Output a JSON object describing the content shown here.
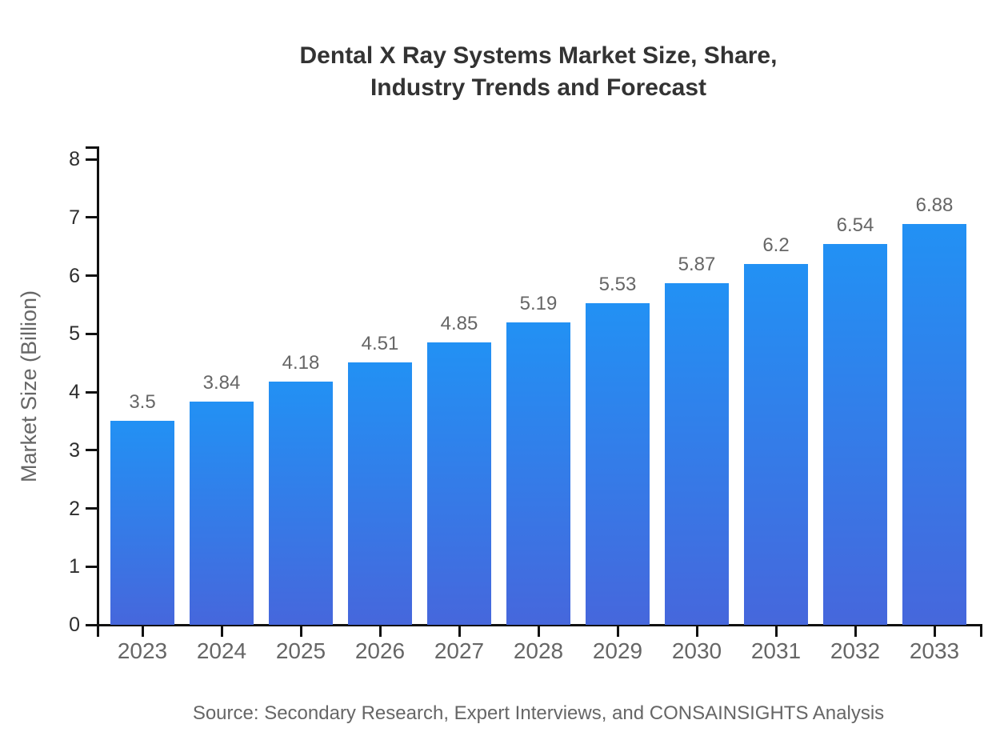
{
  "chart_data": {
    "type": "bar",
    "title_lines": [
      "Dental X Ray Systems Market Size, Share,",
      "Industry Trends and Forecast"
    ],
    "categories": [
      "2023",
      "2024",
      "2025",
      "2026",
      "2027",
      "2028",
      "2029",
      "2030",
      "2031",
      "2032",
      "2033"
    ],
    "values": [
      3.5,
      3.84,
      4.18,
      4.51,
      4.85,
      5.19,
      5.53,
      5.87,
      6.2,
      6.54,
      6.88
    ],
    "xlabel": "",
    "ylabel": "Market Size (Billion)",
    "ylim": [
      0,
      8
    ],
    "y_ticks": [
      0,
      1,
      2,
      3,
      4,
      5,
      6,
      7,
      8
    ],
    "grid": false,
    "legend": false,
    "source_note": "Source: Secondary Research, Expert Interviews, and CONSAINSIGHTS Analysis",
    "colors": {
      "bar_gradient_top": "#2291F4",
      "bar_gradient_bottom": "#4667DC",
      "axis_line": "#111111",
      "y_tick_label": "#2e2e2e",
      "x_tick_label": "#666666",
      "value_label": "#666666",
      "title": "#333333",
      "axis_title": "#666666",
      "source": "#666666",
      "background": "#ffffff"
    }
  }
}
